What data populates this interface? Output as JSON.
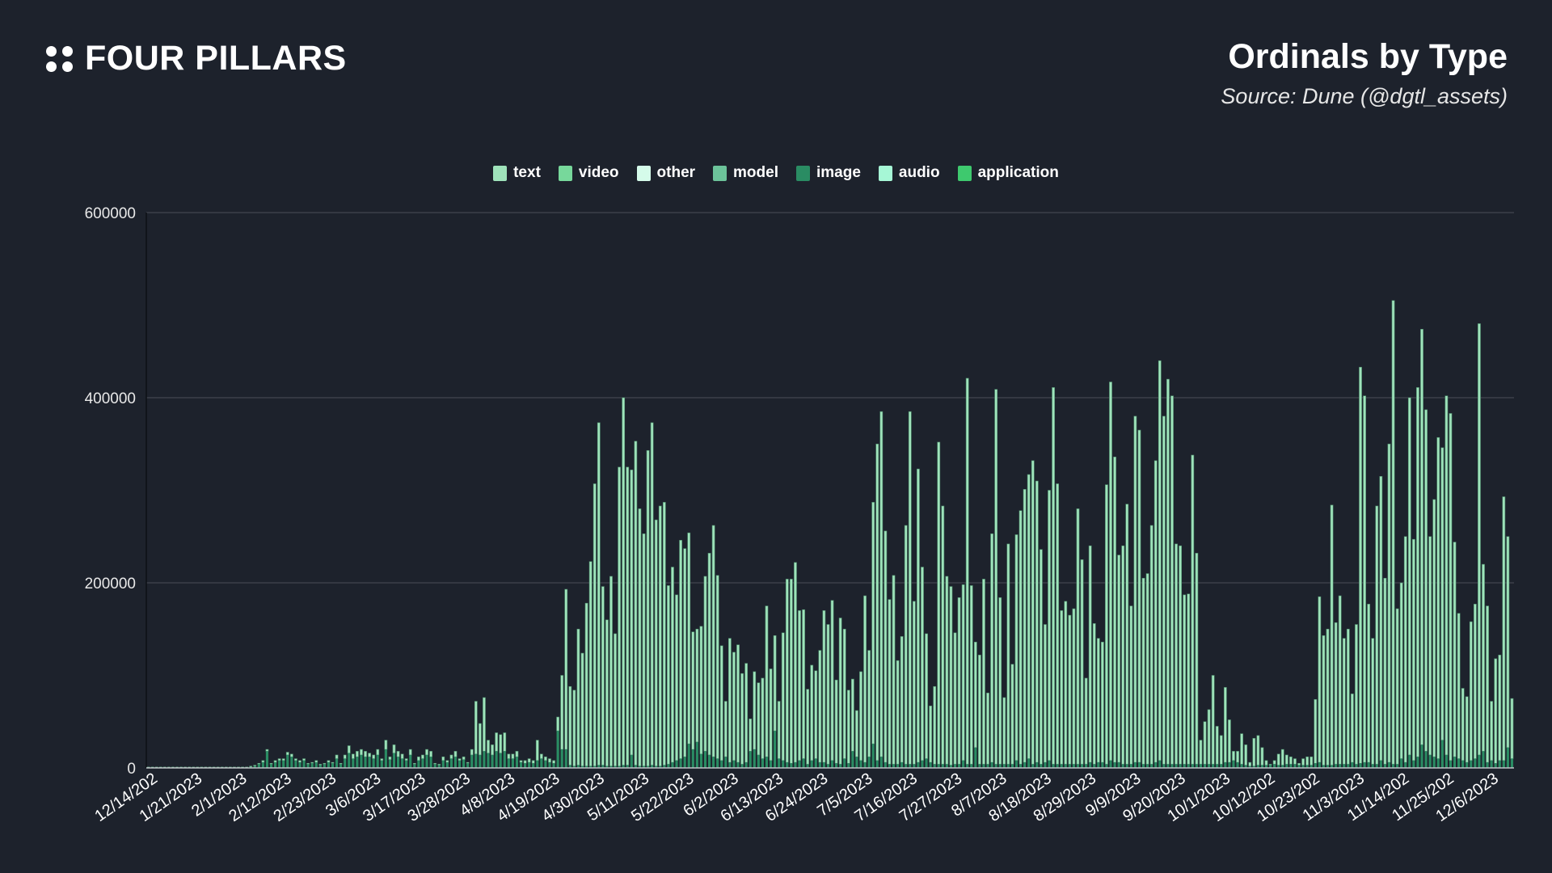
{
  "header": {
    "brand": "FOUR PILLARS",
    "title": "Ordinals by Type",
    "source": "Source: Dune (@dgtl_assets)"
  },
  "chart_data": {
    "type": "bar",
    "stacked": true,
    "title": "Ordinals by Type",
    "xlabel": "",
    "ylabel": "",
    "ylim": [
      0,
      600000
    ],
    "yticks": [
      "0",
      "200000",
      "400000",
      "600000"
    ],
    "grid": true,
    "legend_position": "top-center",
    "legend": [
      {
        "name": "text",
        "color": "#9fe3bb"
      },
      {
        "name": "video",
        "color": "#77d89b"
      },
      {
        "name": "other",
        "color": "#d5fbea"
      },
      {
        "name": "model",
        "color": "#6cc39a"
      },
      {
        "name": "image",
        "color": "#2a8c63"
      },
      {
        "name": "audio",
        "color": "#a6f7d6"
      },
      {
        "name": "application",
        "color": "#3ec96e"
      }
    ],
    "xtick_labels": [
      "12/14/202",
      "1/21/2023",
      "2/1/2023",
      "2/12/2023",
      "2/23/2023",
      "3/6/2023",
      "3/17/2023",
      "3/28/2023",
      "4/8/2023",
      "4/19/2023",
      "4/30/2023",
      "5/11/2023",
      "5/22/2023",
      "6/2/2023",
      "6/13/2023",
      "6/24/2023",
      "7/5/2023",
      "7/16/2023",
      "7/27/2023",
      "8/7/2023",
      "8/18/2023",
      "8/29/2023",
      "9/9/2023",
      "9/20/2023",
      "10/1/2023",
      "10/12/202",
      "10/23/202",
      "11/3/2023",
      "11/14/202",
      "11/25/202",
      "12/6/2023"
    ],
    "units": "thousands",
    "total_values_k": [
      1,
      1,
      1,
      1,
      1,
      1,
      1,
      1,
      1,
      1,
      1,
      1,
      1,
      1,
      1,
      1,
      1,
      1,
      1,
      1,
      1,
      1,
      1,
      1,
      1,
      2,
      3,
      5,
      8,
      20,
      5,
      8,
      10,
      10,
      17,
      15,
      10,
      8,
      10,
      5,
      6,
      8,
      4,
      5,
      8,
      6,
      14,
      5,
      14,
      24,
      15,
      18,
      20,
      18,
      16,
      14,
      20,
      10,
      30,
      12,
      25,
      18,
      15,
      10,
      20,
      5,
      12,
      14,
      20,
      18,
      5,
      4,
      12,
      8,
      14,
      18,
      10,
      12,
      6,
      20,
      72,
      48,
      76,
      30,
      25,
      38,
      36,
      38,
      15,
      15,
      18,
      8,
      8,
      10,
      8,
      30,
      15,
      12,
      10,
      8,
      55,
      100,
      193,
      88,
      84,
      150,
      124,
      178,
      223,
      307,
      373,
      196,
      160,
      207,
      145,
      325,
      400,
      325,
      322,
      353,
      280,
      253,
      343,
      373,
      268,
      283,
      287,
      197,
      217,
      187,
      246,
      237,
      254,
      147,
      150,
      153,
      207,
      232,
      262,
      208,
      132,
      72,
      140,
      125,
      133,
      102,
      113,
      53,
      104,
      92,
      97,
      175,
      107,
      143,
      72,
      146,
      204,
      204,
      222,
      170,
      171,
      85,
      111,
      105,
      127,
      170,
      155,
      181,
      95,
      162,
      150,
      84,
      96,
      62,
      104,
      186,
      127,
      287,
      350,
      385,
      256,
      182,
      208,
      116,
      142,
      262,
      385,
      180,
      323,
      217,
      145,
      67,
      88,
      352,
      283,
      207,
      196,
      146,
      184,
      198,
      421,
      197,
      136,
      122,
      204,
      81,
      253,
      409,
      184,
      76,
      242,
      112,
      252,
      278,
      301,
      317,
      332,
      310,
      236,
      155,
      300,
      411,
      307,
      170,
      180,
      165,
      172,
      280,
      225,
      97,
      240,
      156,
      140,
      136,
      306,
      417,
      336,
      230,
      240,
      285,
      175,
      380,
      365,
      205,
      210,
      262,
      332,
      440,
      380,
      420,
      402,
      242,
      240,
      187,
      188,
      338,
      232,
      30,
      50,
      63,
      100,
      45,
      35,
      87,
      52,
      18,
      18,
      37,
      25,
      6,
      32,
      35,
      22,
      8,
      4,
      8,
      15,
      20,
      14,
      12,
      10,
      5,
      10,
      12,
      12,
      74,
      185,
      143,
      150,
      284,
      157,
      186,
      140,
      150,
      80,
      155,
      433,
      402,
      177,
      140,
      283,
      315,
      205,
      350,
      505,
      172,
      200,
      250,
      400,
      247,
      411,
      474,
      387,
      250,
      290,
      357,
      346,
      402,
      383,
      244,
      167,
      86,
      77,
      158,
      177,
      480,
      220,
      175,
      72,
      118,
      122,
      293,
      250,
      75
    ],
    "image_values_k": [
      0,
      0,
      0,
      0,
      0,
      0,
      0,
      0,
      0,
      0,
      0,
      0,
      0,
      0,
      0,
      0,
      0,
      0,
      0,
      0,
      0,
      0,
      0,
      0,
      0,
      1,
      2,
      4,
      6,
      18,
      4,
      6,
      8,
      8,
      14,
      12,
      8,
      6,
      8,
      4,
      5,
      6,
      3,
      4,
      6,
      5,
      10,
      4,
      10,
      16,
      10,
      12,
      14,
      12,
      12,
      10,
      14,
      8,
      20,
      9,
      16,
      12,
      10,
      8,
      14,
      4,
      8,
      10,
      14,
      12,
      4,
      3,
      8,
      6,
      10,
      12,
      8,
      9,
      5,
      14,
      15,
      14,
      18,
      16,
      14,
      18,
      16,
      18,
      10,
      10,
      12,
      6,
      5,
      6,
      5,
      8,
      10,
      8,
      6,
      5,
      40,
      20,
      20,
      3,
      2,
      3,
      2,
      2,
      2,
      2,
      3,
      3,
      2,
      2,
      2,
      2,
      3,
      3,
      14,
      3,
      2,
      2,
      2,
      3,
      2,
      2,
      3,
      4,
      6,
      8,
      10,
      12,
      26,
      20,
      28,
      15,
      18,
      14,
      12,
      10,
      8,
      12,
      6,
      8,
      6,
      4,
      6,
      18,
      20,
      14,
      10,
      12,
      8,
      40,
      10,
      8,
      6,
      5,
      6,
      8,
      10,
      4,
      8,
      10,
      6,
      6,
      4,
      8,
      5,
      4,
      10,
      5,
      18,
      12,
      8,
      6,
      12,
      26,
      8,
      12,
      6,
      4,
      4,
      4,
      6,
      4,
      4,
      4,
      6,
      8,
      10,
      6,
      4,
      4,
      4,
      4,
      3,
      4,
      4,
      8,
      4,
      4,
      22,
      4,
      4,
      4,
      6,
      4,
      4,
      4,
      4,
      4,
      8,
      4,
      6,
      10,
      4,
      6,
      4,
      6,
      8,
      4,
      4,
      4,
      4,
      4,
      4,
      4,
      4,
      4,
      6,
      4,
      6,
      6,
      4,
      8,
      6,
      6,
      4,
      4,
      4,
      6,
      6,
      4,
      4,
      4,
      6,
      8,
      4,
      4,
      4,
      4,
      4,
      4,
      4,
      4,
      4,
      4,
      4,
      4,
      4,
      4,
      4,
      6,
      6,
      8,
      6,
      4,
      3,
      2,
      2,
      3,
      3,
      3,
      3,
      4,
      3,
      3,
      4,
      4,
      4,
      3,
      3,
      3,
      3,
      5,
      6,
      3,
      3,
      3,
      4,
      4,
      4,
      4,
      6,
      4,
      5,
      6,
      6,
      4,
      4,
      8,
      4,
      6,
      4,
      4,
      10,
      6,
      14,
      8,
      12,
      25,
      18,
      14,
      12,
      10,
      30,
      14,
      8,
      12,
      10,
      8,
      6,
      8,
      10,
      14,
      18,
      6,
      8,
      5,
      8,
      8,
      22,
      10,
      8,
      8
    ]
  }
}
